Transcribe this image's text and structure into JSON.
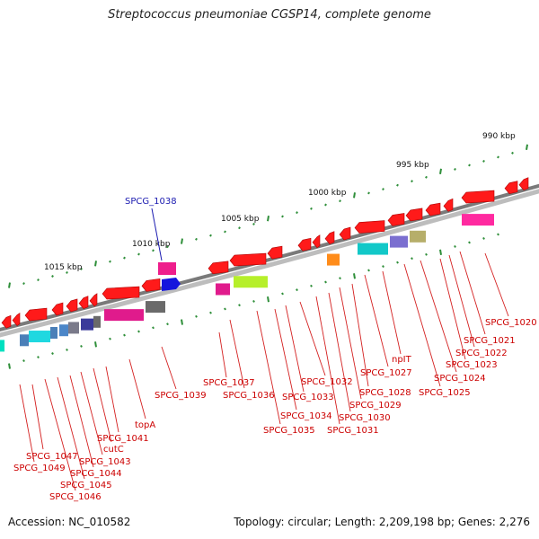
{
  "title": "Streptococcus pneumoniae CGSP14, complete genome",
  "footer": {
    "accession": "Accession: NC_010582",
    "summary": "Topology: circular; Length: 2,209,198 bp; Genes: 2,276"
  },
  "colors": {
    "backbone": "#8a8a8a",
    "tick": "#2f8f3a",
    "gene_label": "#cc0000",
    "highlight_label": "#1a1ab0",
    "forward_cds": "#ff1a1a",
    "reverse_cds": "#ff1a1a"
  },
  "scale_labels": [
    "1015 kbp",
    "1010 kbp",
    "1005 kbp",
    "1000 kbp",
    "995 kbp",
    "990 kbp"
  ],
  "highlighted_gene": "SPCG_1038",
  "gene_labels": [
    "SPCG_1020",
    "SPCG_1021",
    "SPCG_1022",
    "SPCG_1023",
    "SPCG_1024",
    "SPCG_1025",
    "npIT",
    "SPCG_1027",
    "SPCG_1028",
    "SPCG_1029",
    "SPCG_1030",
    "SPCG_1031",
    "SPCG_1032",
    "SPCG_1033",
    "SPCG_1034",
    "SPCG_1035",
    "SPCG_1036",
    "SPCG_1037",
    "SPCG_1039",
    "topA",
    "SPCG_1041",
    "cutC",
    "SPCG_1043",
    "SPCG_1044",
    "SPCG_1045",
    "SPCG_1046",
    "SPCG_1047",
    "SPCG_1049"
  ]
}
